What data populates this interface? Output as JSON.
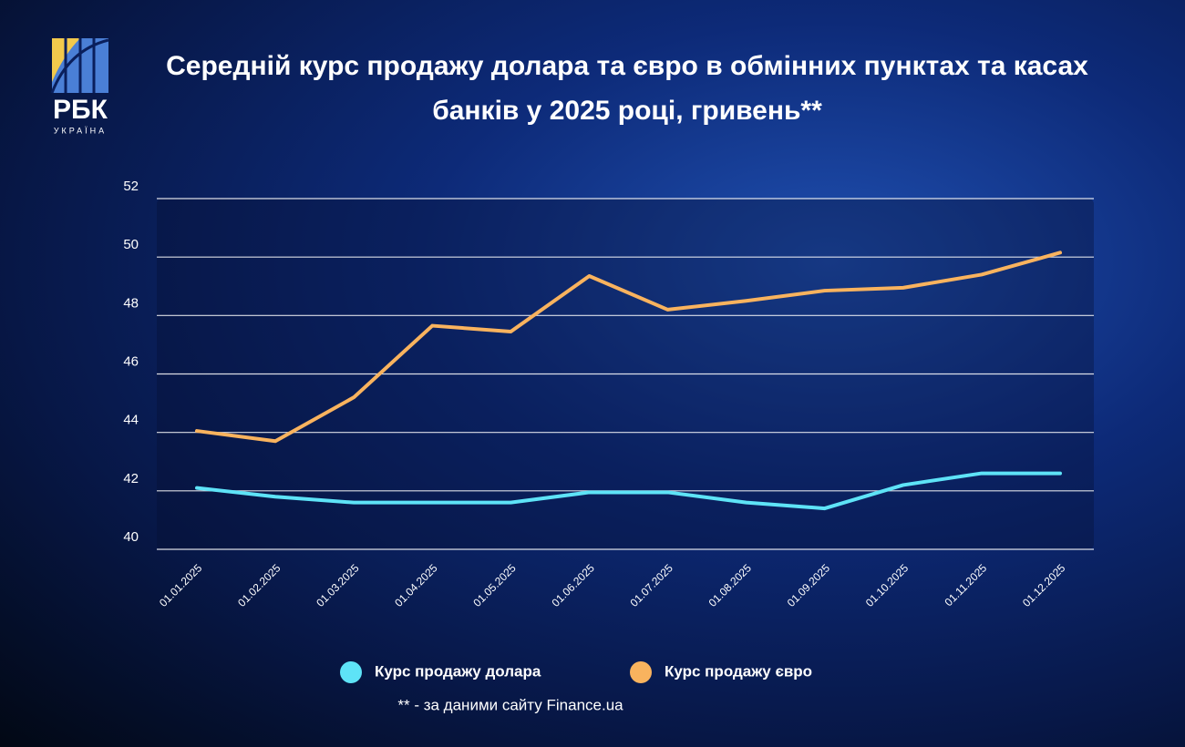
{
  "logo": {
    "name": "РБК",
    "sub": "УКРАЇНА"
  },
  "chart_data": {
    "type": "line",
    "title": "Середній курс продажу долара та євро в обмінних пунктах та касах банків у 2025 році, гривень**",
    "footnote": "** - за даними сайту Finance.ua",
    "categories": [
      "01.01.2025",
      "01.02.2025",
      "01.03.2025",
      "01.04.2025",
      "01.05.2025",
      "01.06.2025",
      "01.07.2025",
      "01.08.2025",
      "01.09.2025",
      "01.10.2025",
      "01.11.2025",
      "01.12.2025"
    ],
    "series": [
      {
        "name": "Курс продажу долара",
        "color": "#5ee3f7",
        "values": [
          42.1,
          41.8,
          41.6,
          41.6,
          41.6,
          41.95,
          41.95,
          41.6,
          41.4,
          42.2,
          42.6,
          42.6
        ]
      },
      {
        "name": "Курс продажу євро",
        "color": "#f9b35e",
        "values": [
          44.05,
          43.7,
          45.2,
          47.65,
          47.45,
          49.35,
          48.2,
          48.5,
          48.85,
          48.95,
          49.4,
          50.15
        ]
      }
    ],
    "ylim": [
      40,
      52
    ],
    "yticks": [
      40,
      42,
      44,
      46,
      48,
      50,
      52
    ],
    "grid": true
  }
}
